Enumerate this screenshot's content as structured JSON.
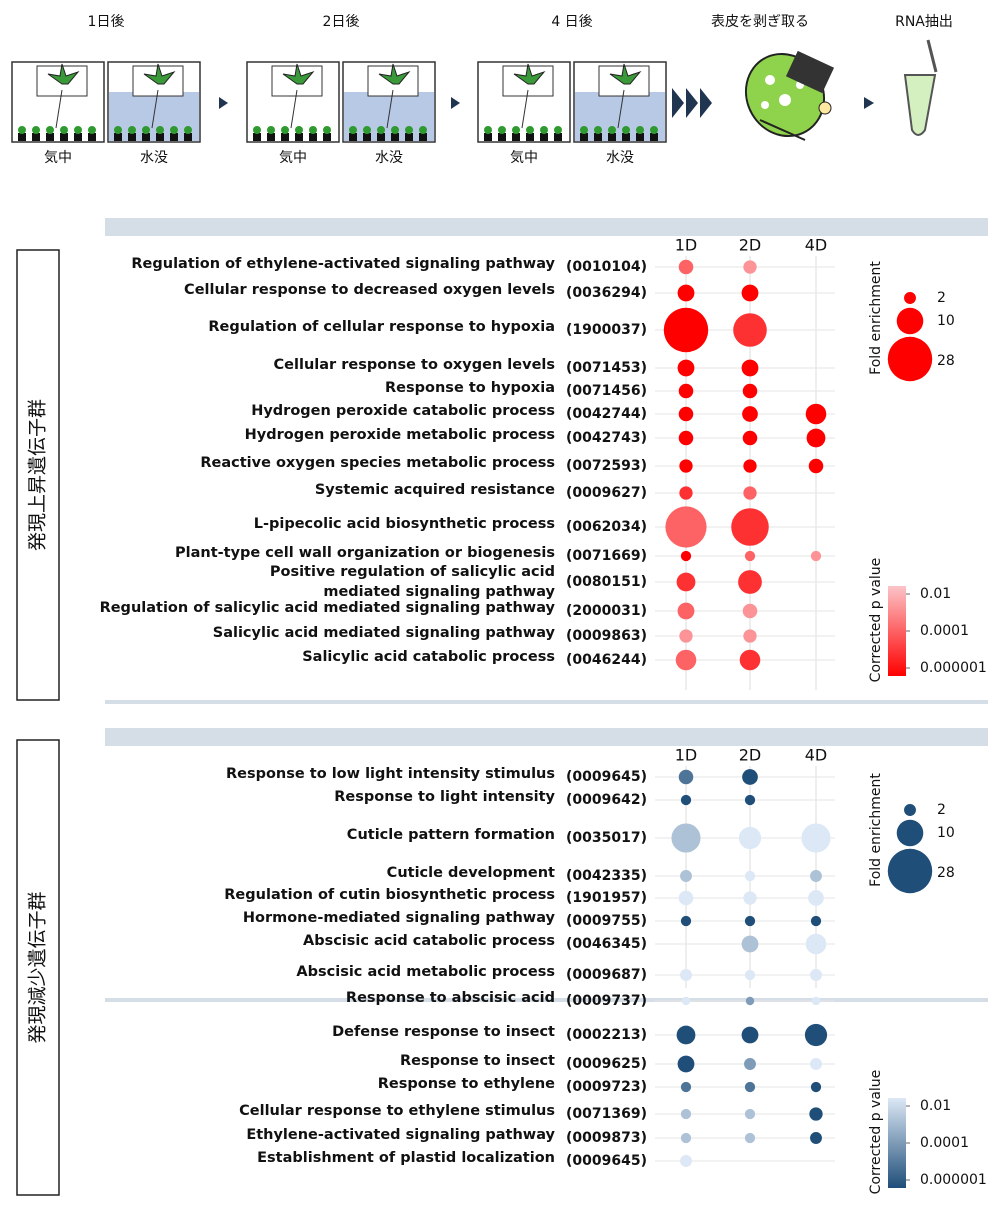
{
  "diagram": {
    "steps": [
      {
        "label": "1日後",
        "conditions": [
          "気中",
          "水没"
        ]
      },
      {
        "label": "2日後",
        "conditions": [
          "気中",
          "水没"
        ]
      },
      {
        "label": "4 日後",
        "conditions": [
          "気中",
          "水没"
        ]
      }
    ],
    "peel": "表皮を剥ぎ取る",
    "extract": "RNA抽出"
  },
  "chart_data": [
    {
      "type": "bubble",
      "group_label": "発現上昇遺伝子群",
      "columns": [
        "1D",
        "2D",
        "4D"
      ],
      "terms": [
        "Regulation of ethylene-activated signaling pathway",
        "Cellular response to decreased oxygen levels",
        "Regulation of cellular response to hypoxia",
        "Cellular response to oxygen levels",
        "Response to hypoxia",
        "Hydrogen peroxide catabolic process",
        "Hydrogen peroxide metabolic process",
        "Reactive oxygen species metabolic process",
        "Systemic acquired resistance",
        "L-pipecolic acid biosynthetic process",
        "Plant-type cell wall organization or biogenesis",
        [
          "Positive regulation of salicylic acid",
          "mediated signaling pathway"
        ],
        "Regulation of salicylic acid mediated signaling pathway",
        "Salicylic acid mediated signaling pathway",
        "Salicylic acid catabolic process"
      ],
      "ids": [
        "(0010104)",
        "(0036294)",
        "(1900037)",
        "(0071453)",
        "(0071456)",
        "(0042744)",
        "(0042743)",
        "(0072593)",
        "(0009627)",
        "(0062034)",
        "(0071669)",
        "(0080151)",
        "(2000031)",
        "(0009863)",
        "(0046244)"
      ],
      "series": [
        {
          "name": "1D",
          "sizes": [
            3,
            4,
            28,
            4,
            3,
            3,
            3,
            2.5,
            2.5,
            24,
            1.5,
            5,
            4,
            2.5,
            6
          ],
          "pvalues": [
            0.0001,
            1e-06,
            1e-06,
            1e-06,
            1e-06,
            1e-06,
            1e-06,
            1e-06,
            1e-05,
            0.0001,
            1e-06,
            1e-05,
            0.0001,
            0.001,
            0.0001
          ]
        },
        {
          "name": "2D",
          "sizes": [
            2.5,
            4,
            16,
            4,
            3,
            3.5,
            3,
            2.5,
            2.5,
            20,
            1.5,
            8,
            3,
            2.5,
            6
          ],
          "pvalues": [
            0.001,
            1e-06,
            1e-05,
            1e-06,
            1e-06,
            1e-06,
            1e-06,
            1e-06,
            0.0001,
            1e-05,
            0.0001,
            1e-05,
            0.001,
            0.001,
            1e-05
          ]
        },
        {
          "name": "4D",
          "sizes": [
            null,
            null,
            null,
            null,
            null,
            6,
            5,
            3,
            null,
            null,
            1.5,
            null,
            null,
            null,
            null
          ],
          "pvalues": [
            null,
            null,
            null,
            null,
            null,
            1e-06,
            1e-06,
            1e-06,
            null,
            null,
            0.001,
            null,
            null,
            null,
            null
          ]
        }
      ],
      "size_legend": {
        "title": "Fold enrichment",
        "values": [
          2,
          10,
          28
        ]
      },
      "color_legend": {
        "title": "Corrected p value",
        "ticks": [
          0.01,
          0.0001,
          1e-06
        ],
        "colors": [
          "#fbc4c8",
          "#ff0000"
        ]
      }
    },
    {
      "type": "bubble",
      "group_label": "発現減少遺伝子群",
      "columns": [
        "1D",
        "2D",
        "4D"
      ],
      "terms": [
        "Response to low light intensity stimulus",
        "Response to light intensity",
        "Cuticle pattern formation",
        "Cuticle development",
        "Regulation of cutin biosynthetic process",
        "Hormone-mediated signaling pathway",
        "Abscisic acid catabolic process",
        "Abscisic acid metabolic process",
        "Response to abscisic acid",
        "Defense response to insect",
        "Response to insect",
        "Response to ethylene",
        "Cellular response to ethylene stimulus",
        "Ethylene-activated signaling pathway",
        "Establishment of plastid localization"
      ],
      "ids": [
        "(0009645)",
        "(0009642)",
        "(0035017)",
        "(0042335)",
        "(1901957)",
        "(0009755)",
        "(0046345)",
        "(0009687)",
        "(0009737)",
        "(0002213)",
        "(0009625)",
        "(0009723)",
        "(0071369)",
        "(0009873)",
        "(0009645)"
      ],
      "series": [
        {
          "name": "1D",
          "sizes": [
            3,
            1.5,
            12,
            2,
            3,
            1.5,
            null,
            2,
            1,
            5,
            4,
            1.5,
            1.5,
            1.5,
            2
          ],
          "pvalues": [
            1e-05,
            1e-06,
            0.001,
            0.001,
            0.01,
            1e-06,
            null,
            0.01,
            0.01,
            1e-06,
            1e-06,
            1e-05,
            0.001,
            0.001,
            0.01
          ]
        },
        {
          "name": "2D",
          "sizes": [
            3.5,
            1.5,
            7,
            1.5,
            2.5,
            1.5,
            4,
            1.5,
            1,
            4,
            2,
            1.5,
            1.5,
            1.5,
            null
          ],
          "pvalues": [
            1e-06,
            1e-06,
            0.01,
            0.01,
            0.01,
            1e-06,
            0.001,
            0.01,
            0.0001,
            1e-06,
            0.0001,
            1e-05,
            0.001,
            0.001,
            null
          ]
        },
        {
          "name": "4D",
          "sizes": [
            null,
            null,
            12,
            2,
            3.5,
            1.5,
            6,
            2,
            1,
            7,
            2,
            1.5,
            2.5,
            2,
            null
          ],
          "pvalues": [
            null,
            null,
            0.01,
            0.001,
            0.01,
            1e-06,
            0.01,
            0.01,
            0.01,
            1e-06,
            0.01,
            1e-06,
            1e-06,
            1e-06,
            null
          ]
        }
      ],
      "size_legend": {
        "title": "Fold enrichment",
        "values": [
          2,
          10,
          28
        ]
      },
      "color_legend": {
        "title": "Corrected p value",
        "ticks": [
          0.01,
          0.0001,
          1e-06
        ],
        "colors": [
          "#dce8f5",
          "#1f4e79"
        ]
      }
    }
  ]
}
